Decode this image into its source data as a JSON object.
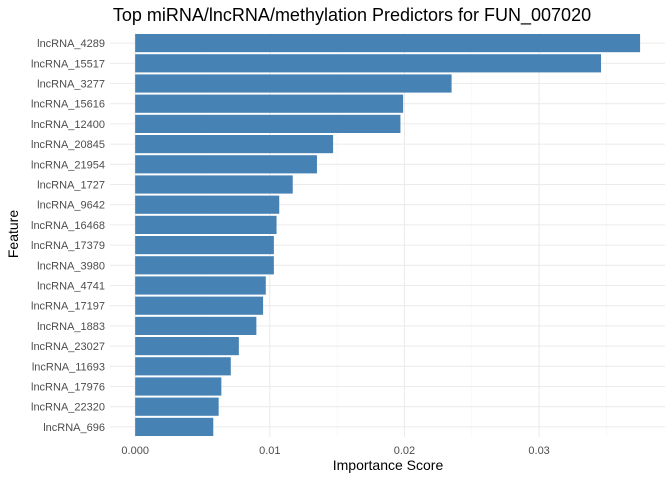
{
  "chart_data": {
    "type": "bar",
    "orientation": "horizontal",
    "title": "Top miRNA/lncRNA/methylation Predictors for FUN_007020",
    "xlabel": "Importance Score",
    "ylabel": "Feature",
    "xlim": [
      -0.00187,
      0.03935
    ],
    "x_ticks": [
      "0.000",
      "0.01",
      "0.02",
      "0.03"
    ],
    "x_tick_values": [
      0,
      0.01,
      0.02,
      0.03
    ],
    "grid": true,
    "bar_color": "#4682B4",
    "categories": [
      "lncRNA_4289",
      "lncRNA_15517",
      "lncRNA_3277",
      "lncRNA_15616",
      "lncRNA_12400",
      "lncRNA_20845",
      "lncRNA_21954",
      "lncRNA_1727",
      "lncRNA_9642",
      "lncRNA_16468",
      "lncRNA_17379",
      "lncRNA_3980",
      "lncRNA_4741",
      "lncRNA_17197",
      "lncRNA_1883",
      "lncRNA_23027",
      "lncRNA_11693",
      "lncRNA_17976",
      "lncRNA_22320",
      "lncRNA_696"
    ],
    "values": [
      0.0375,
      0.0346,
      0.0235,
      0.0199,
      0.0197,
      0.0147,
      0.0135,
      0.0117,
      0.0107,
      0.0105,
      0.0103,
      0.0103,
      0.0097,
      0.0095,
      0.009,
      0.0077,
      0.0071,
      0.0064,
      0.0062,
      0.0058
    ]
  }
}
